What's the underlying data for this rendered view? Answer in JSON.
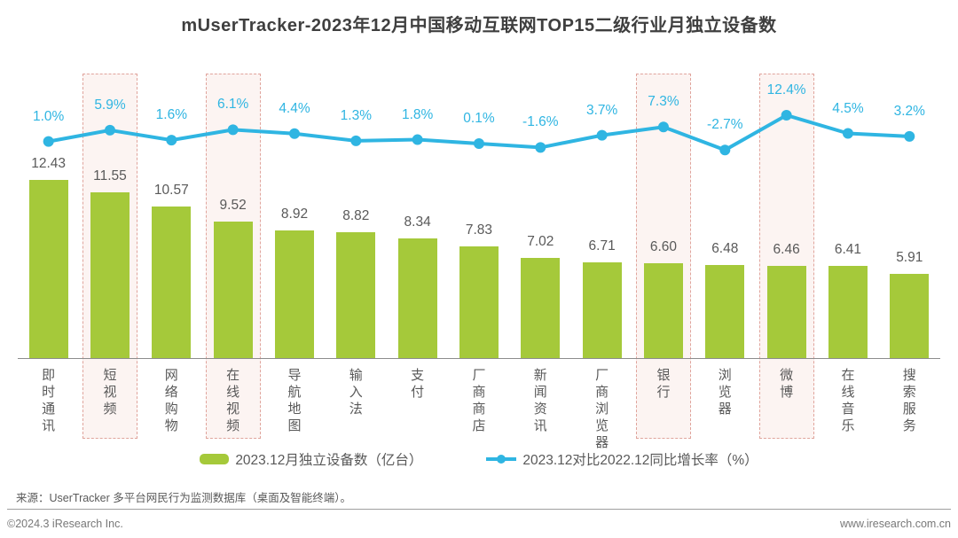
{
  "title": "mUserTracker-2023年12月中国移动互联网TOP15二级行业月独立设备数",
  "chart_data": {
    "type": "combo-bar-line",
    "categories": [
      "即时通讯",
      "短视频",
      "网络购物",
      "在线视频",
      "导航地图",
      "输入法",
      "支付",
      "厂商商店",
      "新闻资讯",
      "厂商浏览器",
      "银行",
      "浏览器",
      "微博",
      "在线音乐",
      "搜索服务"
    ],
    "series": [
      {
        "name": "2023.12月独立设备数（亿台）",
        "type": "bar",
        "values": [
          12.43,
          11.55,
          10.57,
          9.52,
          8.92,
          8.82,
          8.34,
          7.83,
          7.02,
          6.71,
          6.6,
          6.48,
          6.46,
          6.41,
          5.91
        ]
      },
      {
        "name": "2023.12对比2022.12同比增长率（%）",
        "type": "line",
        "unit": "%",
        "values": [
          1.0,
          5.9,
          1.6,
          6.1,
          4.4,
          1.3,
          1.8,
          0.1,
          -1.6,
          3.7,
          7.3,
          -2.7,
          12.4,
          4.5,
          3.2
        ]
      }
    ],
    "highlighted_categories": [
      "短视频",
      "在线视频",
      "银行",
      "微博"
    ],
    "highlight_indexes": [
      1,
      3,
      10,
      12
    ],
    "grid": false,
    "legend_position": "bottom"
  },
  "colors": {
    "bar": "#a5c93a",
    "line": "#2fb5e2",
    "value_label": "#595959",
    "pct_label": "#2fb5e2",
    "title": "#3f3f3f",
    "highlight_fill": "#fcf4f2",
    "highlight_border": "#e0a49c"
  },
  "source": "来源：UserTracker 多平台网民行为监测数据库（桌面及智能终端）。",
  "footer": {
    "left": "©2024.3 iResearch Inc.",
    "right": "www.iresearch.com.cn"
  }
}
